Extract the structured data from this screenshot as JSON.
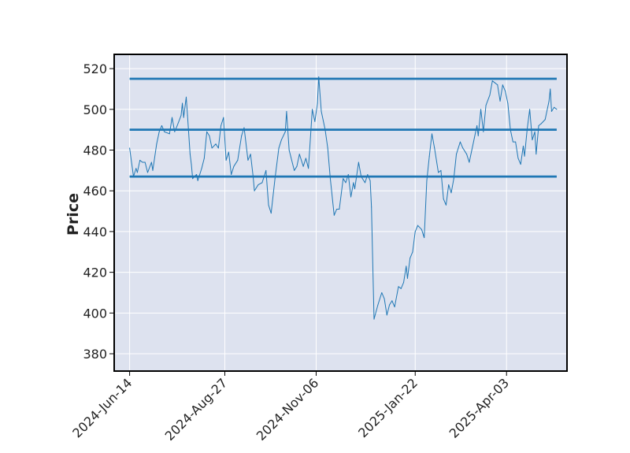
{
  "chart_data": {
    "type": "line",
    "title": "",
    "xlabel": "",
    "ylabel": "Price",
    "ylim": [
      371.5,
      527
    ],
    "xlim": [
      "2024-06-02",
      "2025-05-20"
    ],
    "grid": true,
    "y_ticks": [
      380,
      400,
      420,
      440,
      460,
      480,
      500,
      520
    ],
    "x_ticks": [
      "2024-Jun-14",
      "2024-Aug-27",
      "2024-Nov-06",
      "2025-Jan-22",
      "2025-Apr-03"
    ],
    "x_tick_dates": [
      "2024-06-14",
      "2024-08-27",
      "2024-11-06",
      "2025-01-22",
      "2025-04-03"
    ],
    "colors": {
      "plot_background": "#dde2ef",
      "line": "#1f77b4",
      "grid": "#ffffff",
      "frame": "#000000"
    },
    "series": [
      {
        "style": "close-price-line",
        "points": [
          [
            "2024-06-14",
            481
          ],
          [
            "2024-06-17",
            467
          ],
          [
            "2024-06-19",
            471
          ],
          [
            "2024-06-20",
            469
          ],
          [
            "2024-06-22",
            475
          ],
          [
            "2024-06-24",
            474
          ],
          [
            "2024-06-26",
            474
          ],
          [
            "2024-06-28",
            469
          ],
          [
            "2024-07-01",
            474
          ],
          [
            "2024-07-02",
            470
          ],
          [
            "2024-07-05",
            483
          ],
          [
            "2024-07-07",
            489
          ],
          [
            "2024-07-09",
            492
          ],
          [
            "2024-07-11",
            489
          ],
          [
            "2024-07-15",
            488
          ],
          [
            "2024-07-17",
            496
          ],
          [
            "2024-07-19",
            489
          ],
          [
            "2024-07-21",
            492
          ],
          [
            "2024-07-24",
            497
          ],
          [
            "2024-07-25",
            503
          ],
          [
            "2024-07-26",
            496
          ],
          [
            "2024-07-28",
            506
          ],
          [
            "2024-07-29",
            497
          ],
          [
            "2024-07-31",
            478
          ],
          [
            "2024-08-01",
            473
          ],
          [
            "2024-08-02",
            466
          ],
          [
            "2024-08-05",
            468
          ],
          [
            "2024-08-06",
            465
          ],
          [
            "2024-08-09",
            471
          ],
          [
            "2024-08-11",
            476
          ],
          [
            "2024-08-13",
            489
          ],
          [
            "2024-08-15",
            487
          ],
          [
            "2024-08-17",
            481
          ],
          [
            "2024-08-20",
            483
          ],
          [
            "2024-08-22",
            481
          ],
          [
            "2024-08-24",
            492
          ],
          [
            "2024-08-26",
            496
          ],
          [
            "2024-08-28",
            475
          ],
          [
            "2024-08-30",
            479
          ],
          [
            "2024-09-01",
            468
          ],
          [
            "2024-09-03",
            472
          ],
          [
            "2024-09-06",
            475
          ],
          [
            "2024-09-09",
            487
          ],
          [
            "2024-09-11",
            491
          ],
          [
            "2024-09-14",
            475
          ],
          [
            "2024-09-16",
            478
          ],
          [
            "2024-09-18",
            467
          ],
          [
            "2024-09-19",
            460
          ],
          [
            "2024-09-22",
            463
          ],
          [
            "2024-09-25",
            464
          ],
          [
            "2024-09-28",
            470
          ],
          [
            "2024-09-30",
            453
          ],
          [
            "2024-10-02",
            449
          ],
          [
            "2024-10-05",
            466
          ],
          [
            "2024-10-08",
            481
          ],
          [
            "2024-10-10",
            485
          ],
          [
            "2024-10-13",
            489
          ],
          [
            "2024-10-14",
            499
          ],
          [
            "2024-10-16",
            480
          ],
          [
            "2024-10-20",
            470
          ],
          [
            "2024-10-22",
            472
          ],
          [
            "2024-10-24",
            478
          ],
          [
            "2024-10-27",
            472
          ],
          [
            "2024-10-29",
            476
          ],
          [
            "2024-10-31",
            471
          ],
          [
            "2024-11-03",
            500
          ],
          [
            "2024-11-05",
            494
          ],
          [
            "2024-11-07",
            503
          ],
          [
            "2024-11-08",
            516
          ],
          [
            "2024-11-10",
            499
          ],
          [
            "2024-11-13",
            490
          ],
          [
            "2024-11-15",
            481
          ],
          [
            "2024-11-17",
            466
          ],
          [
            "2024-11-20",
            448
          ],
          [
            "2024-11-22",
            451
          ],
          [
            "2024-11-24",
            451
          ],
          [
            "2024-11-27",
            466
          ],
          [
            "2024-11-29",
            464
          ],
          [
            "2024-12-01",
            468
          ],
          [
            "2024-12-03",
            457
          ],
          [
            "2024-12-05",
            464
          ],
          [
            "2024-12-06",
            461
          ],
          [
            "2024-12-09",
            474
          ],
          [
            "2024-12-11",
            467
          ],
          [
            "2024-12-14",
            464
          ],
          [
            "2024-12-16",
            468
          ],
          [
            "2024-12-18",
            465
          ],
          [
            "2024-12-19",
            452
          ],
          [
            "2024-12-21",
            397
          ],
          [
            "2024-12-24",
            404
          ],
          [
            "2024-12-27",
            410
          ],
          [
            "2024-12-29",
            407
          ],
          [
            "2024-12-31",
            399
          ],
          [
            "2025-01-02",
            404
          ],
          [
            "2025-01-04",
            406
          ],
          [
            "2025-01-06",
            403
          ],
          [
            "2025-01-09",
            413
          ],
          [
            "2025-01-11",
            412
          ],
          [
            "2025-01-13",
            415
          ],
          [
            "2025-01-15",
            423
          ],
          [
            "2025-01-16",
            417
          ],
          [
            "2025-01-18",
            427
          ],
          [
            "2025-01-20",
            430
          ],
          [
            "2025-01-22",
            440
          ],
          [
            "2025-01-24",
            443
          ],
          [
            "2025-01-27",
            441
          ],
          [
            "2025-01-29",
            437
          ],
          [
            "2025-01-31",
            465
          ],
          [
            "2025-02-02",
            477
          ],
          [
            "2025-02-04",
            488
          ],
          [
            "2025-02-06",
            481
          ],
          [
            "2025-02-09",
            469
          ],
          [
            "2025-02-11",
            470
          ],
          [
            "2025-02-13",
            456
          ],
          [
            "2025-02-15",
            453
          ],
          [
            "2025-02-17",
            463
          ],
          [
            "2025-02-19",
            459
          ],
          [
            "2025-02-21",
            466
          ],
          [
            "2025-02-23",
            478
          ],
          [
            "2025-02-26",
            484
          ],
          [
            "2025-02-28",
            481
          ],
          [
            "2025-03-03",
            478
          ],
          [
            "2025-03-05",
            474
          ],
          [
            "2025-03-07",
            480
          ],
          [
            "2025-03-09",
            486
          ],
          [
            "2025-03-11",
            492
          ],
          [
            "2025-03-12",
            487
          ],
          [
            "2025-03-14",
            500
          ],
          [
            "2025-03-16",
            489
          ],
          [
            "2025-03-18",
            502
          ],
          [
            "2025-03-21",
            507
          ],
          [
            "2025-03-23",
            514
          ],
          [
            "2025-03-25",
            513
          ],
          [
            "2025-03-27",
            512
          ],
          [
            "2025-03-29",
            504
          ],
          [
            "2025-03-31",
            512
          ],
          [
            "2025-04-02",
            509
          ],
          [
            "2025-04-04",
            503
          ],
          [
            "2025-04-06",
            490
          ],
          [
            "2025-04-08",
            484
          ],
          [
            "2025-04-10",
            484
          ],
          [
            "2025-04-12",
            476
          ],
          [
            "2025-04-14",
            473
          ],
          [
            "2025-04-16",
            482
          ],
          [
            "2025-04-17",
            477
          ],
          [
            "2025-04-19",
            490
          ],
          [
            "2025-04-21",
            500
          ],
          [
            "2025-04-23",
            485
          ],
          [
            "2025-04-25",
            489
          ],
          [
            "2025-04-26",
            478
          ],
          [
            "2025-04-28",
            492
          ],
          [
            "2025-04-30",
            493
          ],
          [
            "2025-05-03",
            495
          ],
          [
            "2025-05-06",
            504
          ],
          [
            "2025-05-07",
            510
          ],
          [
            "2025-05-08",
            499
          ],
          [
            "2025-05-10",
            501
          ],
          [
            "2025-05-12",
            500
          ]
        ]
      }
    ],
    "horizontal_lines": [
      {
        "y": 515,
        "x_start": "2024-06-14",
        "x_end": "2025-05-12"
      },
      {
        "y": 490,
        "x_start": "2024-06-14",
        "x_end": "2025-05-12"
      },
      {
        "y": 467,
        "x_start": "2024-06-14",
        "x_end": "2025-05-12"
      }
    ]
  }
}
